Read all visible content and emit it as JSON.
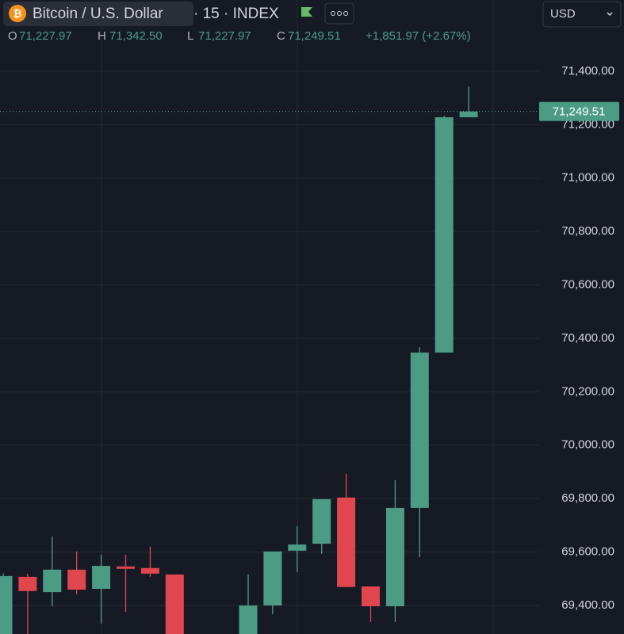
{
  "header": {
    "symbol": "Bitcoin / U.S. Dollar",
    "interval": "· 15 · INDEX",
    "currency": "USD",
    "ohlc": [
      [
        "O",
        "71,227.97"
      ],
      [
        "H",
        "71,342.50"
      ],
      [
        "L",
        "71,227.97"
      ],
      [
        "C",
        "71,249.51"
      ]
    ],
    "change": "+1,851.97 (+2.67%)"
  },
  "chart_data": {
    "type": "candlestick",
    "up_color": "#4c9c85",
    "down_color": "#e0464e",
    "grid": true,
    "categories": [
      null,
      null,
      null,
      null,
      null,
      null,
      null,
      null,
      null,
      null,
      null,
      null,
      null,
      null,
      null,
      null,
      null,
      null,
      null,
      null
    ],
    "open": [
      69250,
      69507,
      69450,
      69534,
      69462,
      69546,
      69540,
      69516,
      null,
      null,
      69250,
      69400,
      69605,
      69631,
      69804,
      69471,
      69397,
      69765,
      70347,
      71227.97
    ],
    "high": [
      69520,
      69519,
      69658,
      69602,
      69590,
      69590,
      69620,
      69516,
      null,
      null,
      69516,
      69602,
      69697,
      69798,
      69893,
      69471,
      69869,
      70367,
      71234,
      71342.5
    ],
    "low": [
      69250,
      69250,
      69397,
      69442,
      69332,
      69376,
      69507,
      69250,
      null,
      null,
      69250,
      69367,
      69525,
      69593,
      69469,
      69338,
      69338,
      69581,
      70347,
      71227.97
    ],
    "close": [
      69510,
      69454,
      69534,
      69459,
      69548,
      69537,
      69519,
      69250,
      null,
      null,
      69400,
      69602,
      69628,
      69798,
      69469,
      69397,
      69765,
      70347,
      71228,
      71249.51
    ],
    "ylim": [
      69293,
      71667
    ],
    "yticks": [
      {
        "value": 69400,
        "label": "69,400.00"
      },
      {
        "value": 69600,
        "label": "69,600.00"
      },
      {
        "value": 69800,
        "label": "69,800.00"
      },
      {
        "value": 70000,
        "label": "70,000.00"
      },
      {
        "value": 70200,
        "label": "70,200.00"
      },
      {
        "value": 70400,
        "label": "70,400.00"
      },
      {
        "value": 70600,
        "label": "70,600.00"
      },
      {
        "value": 70800,
        "label": "70,800.00"
      },
      {
        "value": 71000,
        "label": "71,000.00"
      },
      {
        "value": 71200,
        "label": "71,200.00"
      },
      {
        "value": 71400,
        "label": "71,400.00"
      }
    ],
    "last_price": {
      "value": 71249.51,
      "label": "71,249.51"
    }
  }
}
